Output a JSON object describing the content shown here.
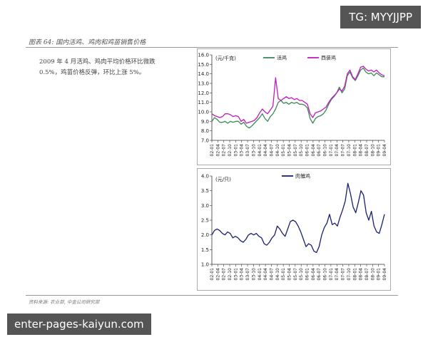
{
  "figure_title": "图表 64: 国内活鸡、鸡肉和鸡苗销售价格",
  "note_text": "2009 年 4 月活鸡、鸡肉平均价格环比微跌 0.5%，鸡苗价格反弹，环比上涨 5%。",
  "source": "资料来源: 农业部, 中金公司研究部",
  "watermark_top": "TG: MYYJJPP",
  "watermark_bottom": "enter-pages-kaiyun.com",
  "colors": {
    "series_live": "#3d8a5a",
    "series_meat": "#c21bc2",
    "series_chick": "#1a2070"
  },
  "chart_data": [
    {
      "type": "line",
      "unit_label": "(元/千克)",
      "ylim": [
        7.0,
        16.0
      ],
      "yticks": [
        "7.0",
        "8.0",
        "9.0",
        "10.0",
        "11.0",
        "12.0",
        "13.0",
        "14.0",
        "15.0",
        "16.0"
      ],
      "xticks": [
        "02-01",
        "02-04",
        "02-07",
        "02-10",
        "03-01",
        "03-04",
        "03-07",
        "03-10",
        "04-01",
        "04-04",
        "04-07",
        "04-10",
        "05-01",
        "05-04",
        "05-07",
        "05-10",
        "06-01",
        "06-04",
        "06-07",
        "06-10",
        "07-01",
        "07-04",
        "07-07",
        "07-10",
        "08-01",
        "08-04",
        "08-07",
        "08-10",
        "09-01",
        "09-04"
      ],
      "grid": false,
      "legend_position": "top",
      "series": [
        {
          "name": "活鸡",
          "values": [
            9.0,
            9.4,
            9.2,
            8.9,
            8.9,
            9.0,
            8.8,
            9.0,
            8.9,
            9.0,
            9.0,
            8.7,
            8.9,
            8.5,
            8.3,
            8.5,
            8.8,
            9.1,
            9.4,
            9.8,
            9.3,
            9.0,
            9.5,
            9.8,
            10.3,
            11.0,
            11.2,
            10.9,
            11.0,
            10.8,
            11.0,
            10.9,
            11.0,
            10.8,
            10.8,
            10.7,
            10.4,
            9.3,
            8.8,
            9.3,
            9.5,
            9.6,
            9.8,
            10.2,
            10.8,
            11.3,
            11.6,
            12.0,
            12.6,
            12.0,
            12.4,
            13.8,
            14.2,
            13.6,
            13.3,
            13.8,
            14.4,
            14.6,
            14.2,
            14.0,
            14.1,
            13.8,
            14.1,
            13.9,
            13.7,
            13.7
          ]
        },
        {
          "name": "西装鸡",
          "values": [
            9.8,
            9.6,
            9.5,
            9.4,
            9.5,
            9.8,
            9.8,
            9.7,
            9.5,
            9.6,
            9.5,
            9.0,
            9.2,
            8.8,
            8.9,
            9.0,
            9.1,
            9.4,
            9.9,
            10.3,
            10.0,
            9.8,
            10.2,
            10.6,
            13.6,
            11.4,
            11.2,
            11.4,
            11.6,
            11.4,
            11.5,
            11.3,
            11.4,
            11.2,
            11.2,
            11.0,
            10.8,
            9.8,
            9.4,
            9.9,
            10.0,
            10.1,
            10.3,
            10.5,
            11.0,
            11.4,
            11.7,
            12.0,
            12.4,
            12.2,
            12.7,
            14.0,
            14.4,
            13.7,
            13.4,
            14.0,
            14.7,
            14.8,
            14.5,
            14.3,
            14.4,
            14.2,
            14.4,
            14.1,
            13.9,
            13.8
          ]
        }
      ]
    },
    {
      "type": "line",
      "unit_label": "(元/只)",
      "ylim": [
        1.0,
        4.0
      ],
      "yticks": [
        "1.0",
        "1.5",
        "2.0",
        "2.5",
        "3.0",
        "3.5",
        "4.0"
      ],
      "xticks": [
        "02-01",
        "02-04",
        "02-07",
        "02-10",
        "03-01",
        "03-04",
        "03-07",
        "03-10",
        "04-01",
        "04-04",
        "04-07",
        "04-10",
        "05-01",
        "05-04",
        "05-07",
        "05-10",
        "06-01",
        "06-04",
        "06-07",
        "06-10",
        "07-01",
        "07-04",
        "07-07",
        "07-10",
        "08-01",
        "08-04",
        "08-07",
        "08-10",
        "09-01",
        "09-04"
      ],
      "grid": false,
      "legend_position": "top",
      "series": [
        {
          "name": "肉雏鸡",
          "values": [
            2.0,
            2.15,
            2.2,
            2.15,
            2.05,
            2.0,
            2.1,
            2.05,
            1.9,
            1.95,
            1.9,
            1.8,
            1.75,
            1.85,
            2.0,
            2.05,
            2.0,
            2.05,
            1.95,
            1.9,
            1.7,
            1.65,
            1.75,
            1.9,
            2.0,
            2.3,
            2.2,
            2.05,
            1.95,
            2.2,
            2.45,
            2.5,
            2.45,
            2.3,
            2.1,
            1.85,
            1.6,
            1.7,
            1.65,
            1.45,
            1.4,
            1.6,
            2.0,
            2.25,
            2.4,
            2.7,
            2.35,
            2.4,
            2.3,
            2.6,
            2.85,
            3.15,
            3.75,
            3.4,
            2.95,
            2.75,
            3.1,
            3.5,
            3.35,
            2.75,
            2.5,
            2.8,
            2.3,
            2.1,
            2.05,
            2.35,
            2.7
          ]
        }
      ]
    }
  ]
}
